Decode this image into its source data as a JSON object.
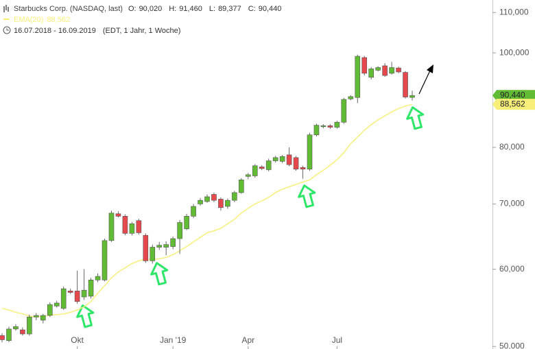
{
  "chart_data": {
    "type": "candlestick",
    "title": "Starbucks Corp. (NASDAQ, last)",
    "period": "16.07.2018 - 16.09.2019",
    "info": "(EDT, 1 Jahr, 1 Woche)",
    "quote": {
      "labels": [
        "O:",
        "H:",
        "L:",
        "C:"
      ],
      "value_labels": [
        "90,020",
        "91,460",
        "89,377",
        "90,440"
      ]
    },
    "log_scale": true,
    "up_color": "#62bb35",
    "down_color": "#e5484d",
    "categories": [
      null,
      null,
      null,
      null,
      null,
      null,
      null,
      null,
      null,
      null,
      null,
      "Okt",
      null,
      null,
      null,
      null,
      null,
      null,
      null,
      null,
      null,
      null,
      null,
      null,
      null,
      "Jan '19",
      null,
      null,
      null,
      null,
      null,
      null,
      null,
      null,
      null,
      null,
      "Apr",
      null,
      null,
      null,
      null,
      null,
      null,
      null,
      null,
      null,
      null,
      null,
      null,
      "Jul",
      null,
      null,
      null,
      null,
      null,
      null,
      null,
      null,
      null,
      null,
      null
    ],
    "open": [
      51300,
      50700,
      52100,
      52000,
      51500,
      53600,
      53200,
      53800,
      55000,
      54700,
      57000,
      57000,
      56200,
      56300,
      58500,
      58500,
      64200,
      68400,
      68000,
      65300,
      67300,
      65000,
      61200,
      63200,
      63200,
      63300,
      64500,
      66000,
      68000,
      70000,
      70400,
      71600,
      70800,
      69600,
      70600,
      71900,
      74700,
      74800,
      76400,
      75900,
      77500,
      77400,
      78600,
      78100,
      76300,
      76000,
      82400,
      84000,
      84200,
      83900,
      84900,
      89700,
      90000,
      98900,
      94400,
      96000,
      97000,
      95300,
      96500,
      95500,
      90020
    ],
    "high": [
      51600,
      52400,
      52700,
      52300,
      53900,
      54100,
      54000,
      55500,
      55700,
      57600,
      57300,
      59800,
      60000,
      58800,
      59400,
      64500,
      68900,
      68800,
      68300,
      67100,
      67600,
      65300,
      63600,
      64000,
      64100,
      64800,
      67400,
      68400,
      70000,
      71000,
      71600,
      71900,
      71100,
      70900,
      72200,
      74400,
      75300,
      76900,
      76700,
      77900,
      78400,
      78600,
      80000,
      78400,
      76600,
      82800,
      84600,
      84500,
      84500,
      85200,
      89900,
      90500,
      99600,
      99300,
      96700,
      96900,
      97600,
      97900,
      96800,
      95800,
      91460
    ],
    "low": [
      50500,
      50500,
      51900,
      51300,
      51300,
      53200,
      52800,
      53600,
      54800,
      54500,
      56600,
      55300,
      55800,
      56000,
      58200,
      58300,
      64000,
      67800,
      65000,
      65000,
      65100,
      60900,
      60800,
      62800,
      62000,
      62900,
      62200,
      65800,
      67700,
      69700,
      70200,
      70300,
      68900,
      69200,
      70300,
      71700,
      74200,
      74500,
      75800,
      75600,
      77200,
      77100,
      76500,
      75700,
      74300,
      75700,
      82100,
      83700,
      83600,
      83600,
      84600,
      89400,
      88800,
      94800,
      93900,
      95700,
      94500,
      95000,
      95300,
      89800,
      89377
    ],
    "close": [
      50800,
      52100,
      52400,
      51500,
      53600,
      53800,
      53800,
      55200,
      55400,
      57300,
      56800,
      55600,
      57100,
      58500,
      59000,
      64200,
      68500,
      68000,
      65300,
      66800,
      65400,
      61200,
      63200,
      63500,
      63600,
      64500,
      67000,
      68000,
      69600,
      70600,
      71200,
      70600,
      69400,
      70600,
      71900,
      74100,
      75000,
      76600,
      76100,
      77500,
      78100,
      78300,
      76800,
      76000,
      76000,
      82400,
      84300,
      84200,
      83900,
      84900,
      89600,
      90200,
      99200,
      95300,
      96300,
      96600,
      94800,
      96600,
      95600,
      90100,
      90440
    ],
    "ema": {
      "name": "EMA(20)",
      "color": "#f8ef7a",
      "last_value_label": "88,562",
      "values": [
        54700,
        54500,
        54200,
        54000,
        53700,
        53600,
        53700,
        53800,
        53900,
        54000,
        54200,
        54500,
        54900,
        55600,
        56700,
        57700,
        58800,
        59600,
        60200,
        60800,
        61200,
        61400,
        61400,
        61500,
        61700,
        62100,
        62700,
        63300,
        64000,
        64700,
        65400,
        65700,
        66100,
        66800,
        67500,
        68500,
        69300,
        70000,
        70500,
        71100,
        71900,
        72500,
        72900,
        73300,
        73700,
        74100,
        75000,
        75800,
        76700,
        77700,
        79000,
        80700,
        82000,
        83300,
        84400,
        85400,
        86200,
        87000,
        87700,
        88200,
        88562
      ]
    },
    "ylim": [
      49700,
      113300
    ],
    "yticks": [
      {
        "value": 50000,
        "label": "50,000"
      },
      {
        "value": 60000,
        "label": "60,000"
      },
      {
        "value": 70000,
        "label": "70,000"
      },
      {
        "value": 80000,
        "label": "80,000"
      },
      {
        "value": 100000,
        "label": "100,000"
      },
      {
        "value": 110000,
        "label": "110,000"
      }
    ]
  }
}
